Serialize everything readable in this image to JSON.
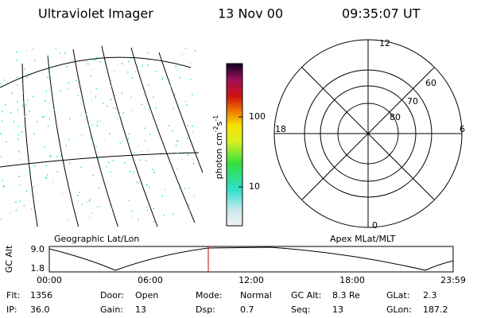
{
  "header": {
    "title": "Ultraviolet Imager",
    "date": "13 Nov 00",
    "time": "09:35:07 UT"
  },
  "map": {
    "caption": "Geographic Lat/Lon"
  },
  "colorbar": {
    "label": [
      "photon cm",
      "-2",
      "s",
      "-1"
    ],
    "ticks": [
      "100",
      "10"
    ]
  },
  "polar": {
    "caption": "Apex MLat/MLT",
    "hours": [
      "12",
      "6",
      "0",
      "18"
    ],
    "rings": [
      "80",
      "70",
      "60"
    ]
  },
  "timeline": {
    "ylabel": "GC Alt",
    "yticks": [
      "9.0",
      "1.8"
    ],
    "xticks": [
      "00:00",
      "06:00",
      "12:00",
      "18:00",
      "23:59"
    ]
  },
  "info": [
    [
      [
        "Flt:",
        "1356"
      ],
      [
        "Door:",
        "Open"
      ],
      [
        "Mode:",
        "Normal"
      ],
      [
        "GC Alt:",
        "8.3 Re"
      ],
      [
        "GLat:",
        "2.3"
      ]
    ],
    [
      [
        "IP:",
        "36.0"
      ],
      [
        "Gain:",
        "13"
      ],
      [
        "Dsp:",
        "0.7"
      ],
      [
        "Seq:",
        "13"
      ],
      [
        "GLon:",
        "187.2"
      ]
    ]
  ]
}
